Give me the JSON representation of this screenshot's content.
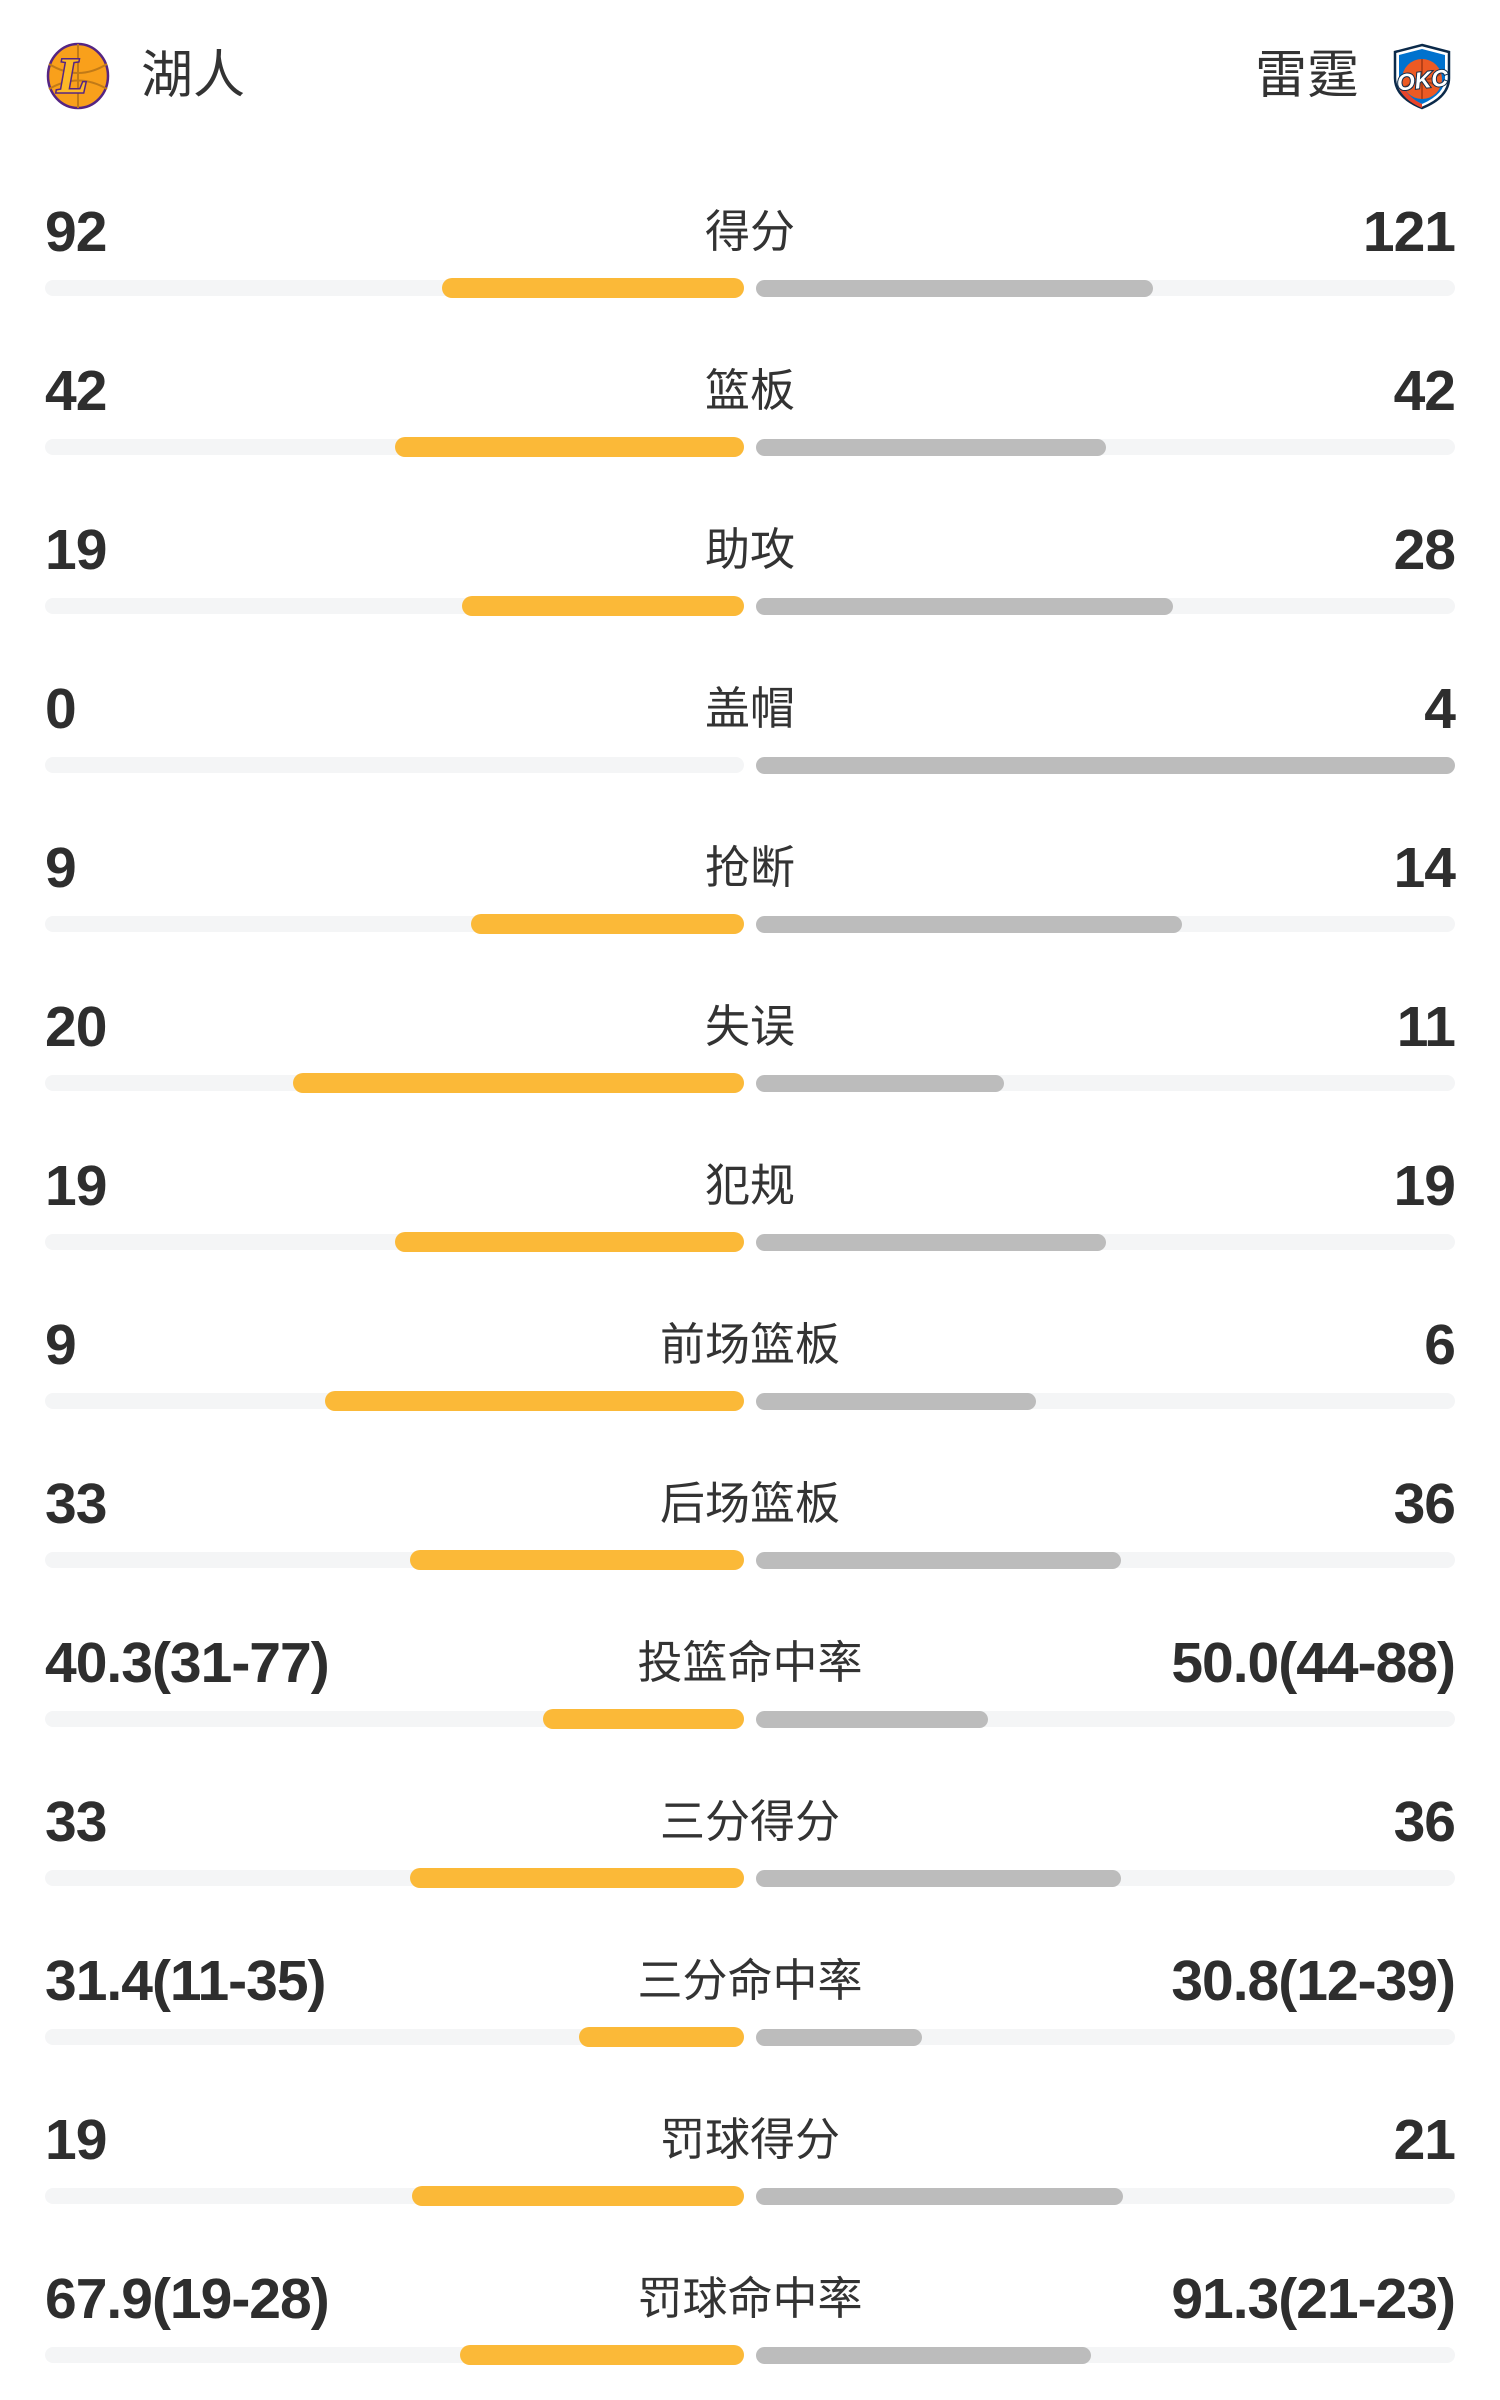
{
  "header": {
    "home": {
      "name": "湖人",
      "logo": "lakers"
    },
    "away": {
      "name": "雷霆",
      "logo": "okc"
    }
  },
  "colors": {
    "home_bar": "#FBB938",
    "away_bar": "#BCBCBC",
    "track": "#F4F5F6",
    "value_text": "#2E2E2E",
    "label_text": "#333333",
    "lakers_purple": "#552583",
    "lakers_gold": "#F9A01B",
    "okc_blue": "#0072CE",
    "okc_orange": "#EC5A24",
    "okc_navy": "#0B2A4A"
  },
  "chart_data": {
    "type": "bar",
    "layout": "mirrored-horizontal-comparison",
    "legend_position": "none",
    "grid": false,
    "rows": [
      {
        "label": "得分",
        "home": "92",
        "away": "121",
        "home_num": 92,
        "away_num": 121,
        "home_bar": 0.432,
        "away_bar": 0.568
      },
      {
        "label": "篮板",
        "home": "42",
        "away": "42",
        "home_num": 42,
        "away_num": 42,
        "home_bar": 0.5,
        "away_bar": 0.5
      },
      {
        "label": "助攻",
        "home": "19",
        "away": "28",
        "home_num": 19,
        "away_num": 28,
        "home_bar": 0.404,
        "away_bar": 0.596
      },
      {
        "label": "盖帽",
        "home": "0",
        "away": "4",
        "home_num": 0,
        "away_num": 4,
        "home_bar": 0,
        "away_bar": 1
      },
      {
        "label": "抢断",
        "home": "9",
        "away": "14",
        "home_num": 9,
        "away_num": 14,
        "home_bar": 0.391,
        "away_bar": 0.609
      },
      {
        "label": "失误",
        "home": "20",
        "away": "11",
        "home_num": 20,
        "away_num": 11,
        "home_bar": 0.645,
        "away_bar": 0.355
      },
      {
        "label": "犯规",
        "home": "19",
        "away": "19",
        "home_num": 19,
        "away_num": 19,
        "home_bar": 0.5,
        "away_bar": 0.5
      },
      {
        "label": "前场篮板",
        "home": "9",
        "away": "6",
        "home_num": 9,
        "away_num": 6,
        "home_bar": 0.6,
        "away_bar": 0.4
      },
      {
        "label": "后场篮板",
        "home": "33",
        "away": "36",
        "home_num": 33,
        "away_num": 36,
        "home_bar": 0.478,
        "away_bar": 0.522
      },
      {
        "label": "投篮命中率",
        "home": "40.3(31-77)",
        "away": "50.0(44-88)",
        "home_num": 40.3,
        "away_num": 50.0,
        "home_bar": 0.287,
        "away_bar": 0.332
      },
      {
        "label": "三分得分",
        "home": "33",
        "away": "36",
        "home_num": 33,
        "away_num": 36,
        "home_bar": 0.478,
        "away_bar": 0.522
      },
      {
        "label": "三分命中率",
        "home": "31.4(11-35)",
        "away": "30.8(12-39)",
        "home_num": 31.4,
        "away_num": 30.8,
        "home_bar": 0.236,
        "away_bar": 0.237
      },
      {
        "label": "罚球得分",
        "home": "19",
        "away": "21",
        "home_num": 19,
        "away_num": 21,
        "home_bar": 0.475,
        "away_bar": 0.525
      },
      {
        "label": "罚球命中率",
        "home": "67.9(19-28)",
        "away": "91.3(21-23)",
        "home_num": 67.9,
        "away_num": 91.3,
        "home_bar": 0.406,
        "away_bar": 0.479
      }
    ]
  }
}
